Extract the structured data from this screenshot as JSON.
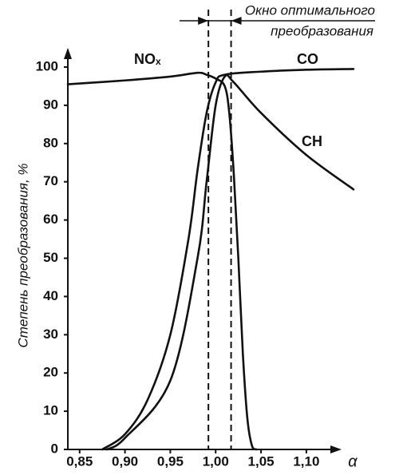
{
  "chart_data": {
    "type": "line",
    "y_label": "Степень преобразования, %",
    "x_label": "α",
    "annotation": [
      "Окно оптимального",
      "преобразования"
    ],
    "window": [
      0.992,
      1.017
    ],
    "xlim": [
      0.837,
      1.152
    ],
    "ylim": [
      0,
      100
    ],
    "xticks": [
      {
        "value": 0.85,
        "label": "0,85"
      },
      {
        "value": 0.9,
        "label": "0,90"
      },
      {
        "value": 0.95,
        "label": "0,95"
      },
      {
        "value": 1.0,
        "label": "1,00"
      },
      {
        "value": 1.05,
        "label": "1,05"
      },
      {
        "value": 1.1,
        "label": "1,10"
      }
    ],
    "yticks": [
      0,
      10,
      20,
      30,
      40,
      50,
      60,
      70,
      80,
      90,
      100
    ],
    "series": [
      {
        "name": "NOₓ",
        "color": "#111111",
        "x": [
          0.837,
          0.9,
          0.95,
          0.98,
          0.99,
          1.0,
          1.01,
          1.015,
          1.02,
          1.025,
          1.03,
          1.035,
          1.04,
          1.045
        ],
        "values": [
          95.5,
          96.5,
          97.5,
          98.5,
          98,
          97,
          95,
          88,
          72,
          50,
          25,
          8,
          1,
          0
        ]
      },
      {
        "name": "CO",
        "color": "#111111",
        "x": [
          0.875,
          0.9,
          0.925,
          0.95,
          0.97,
          0.98,
          0.99,
          1.0,
          1.01,
          1.05,
          1.1,
          1.152
        ],
        "values": [
          0,
          4,
          13,
          30,
          55,
          73,
          88,
          96,
          98,
          98.8,
          99.3,
          99.5
        ]
      },
      {
        "name": "CH",
        "color": "#111111",
        "x": [
          0.88,
          0.9,
          0.95,
          0.98,
          0.99,
          1.0,
          1.01,
          1.02,
          1.05,
          1.1,
          1.152
        ],
        "values": [
          0,
          3,
          18,
          50,
          70,
          90,
          97.5,
          96,
          88,
          77,
          68
        ]
      }
    ]
  }
}
